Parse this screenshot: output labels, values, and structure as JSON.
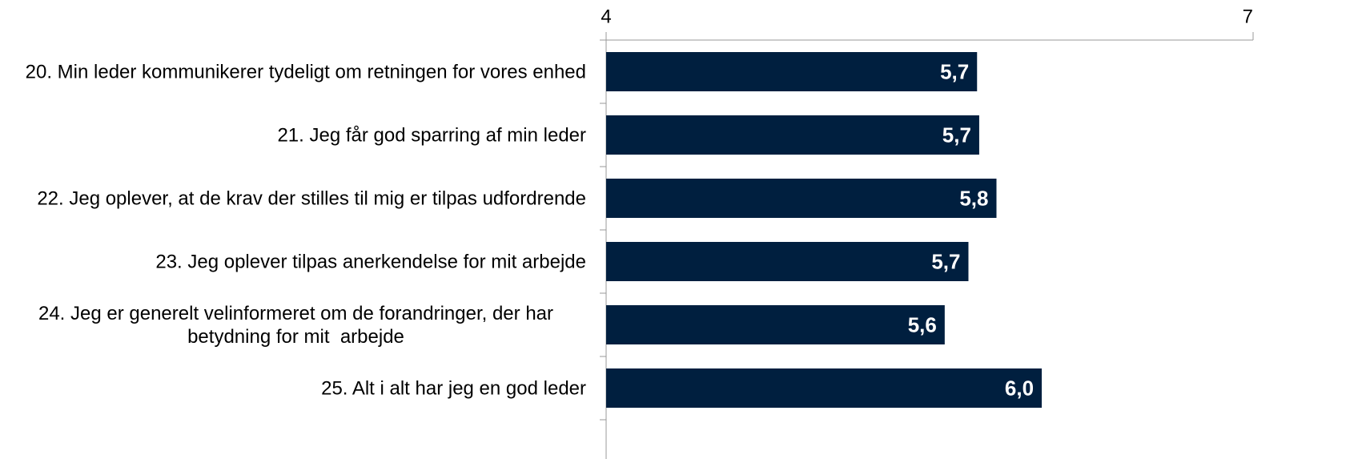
{
  "chart_data": {
    "type": "barh",
    "categories": [
      "20. Min leder kommunikerer tydeligt om retningen for vores enhed",
      "21. Jeg får god sparring af min leder",
      "22. Jeg oplever, at de krav der stilles til mig er tilpas udfordrende",
      "23. Jeg oplever tilpas anerkendelse for mit arbejde",
      "24. Jeg er generelt velinformeret om de forandringer, der har betydning for mit  arbejde",
      "25. Alt i alt har jeg en god leder"
    ],
    "values": [
      5.72,
      5.73,
      5.81,
      5.68,
      5.57,
      6.02
    ],
    "value_labels": [
      "5,7",
      "5,7",
      "5,8",
      "5,7",
      "5,6",
      "6,0"
    ],
    "color": "#001f3f",
    "xlim": [
      4,
      7
    ],
    "xticks": [
      4,
      7
    ]
  }
}
